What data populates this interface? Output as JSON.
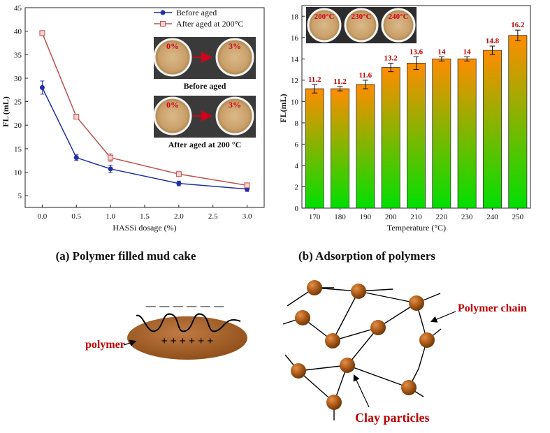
{
  "chart_data": [
    {
      "type": "line",
      "caption": "(a) Polymer filled mud cake",
      "xlabel": "HASSi dosage (%)",
      "ylabel": "FL (mL)",
      "x": [
        0.0,
        0.5,
        1.0,
        2.0,
        3.0
      ],
      "xticks": [
        "0.0",
        "0.5",
        "1.0",
        "1.5",
        "2.0",
        "2.5",
        "3.0"
      ],
      "xlim": [
        -0.25,
        3.25
      ],
      "yticks": [
        "5",
        "10",
        "15",
        "20",
        "25",
        "30",
        "35",
        "40",
        "45"
      ],
      "ylim": [
        2.5,
        45
      ],
      "series": [
        {
          "name": "Before aged",
          "values": [
            28.0,
            13.1,
            10.7,
            7.6,
            6.4
          ],
          "errors": [
            1.4,
            0.6,
            0.8,
            0.5,
            0.5
          ],
          "color": "#1f2fa8"
        },
        {
          "name": "After aged at 200°C",
          "values": [
            39.6,
            21.8,
            13.1,
            9.6,
            7.2
          ],
          "errors": [
            0.5,
            0.5,
            0.8,
            0.4,
            0.4
          ],
          "color": "#c0504d"
        }
      ],
      "legend_position": "top-right",
      "inset_photos": {
        "row1_label": "Before aged",
        "row1_left": "0%",
        "row1_right": "3%",
        "row2_label": "After aged at 200 °C",
        "row2_left": "0%",
        "row2_right": "3%"
      }
    },
    {
      "type": "bar",
      "caption": "(b) Adsorption  of polymers",
      "xlabel": "Temperature (°C)",
      "ylabel": "FL(mL)",
      "categories": [
        "170",
        "180",
        "190",
        "200",
        "210",
        "220",
        "230",
        "240",
        "250"
      ],
      "values": [
        11.2,
        11.2,
        11.6,
        13.2,
        13.6,
        14.0,
        14.0,
        14.8,
        16.2
      ],
      "data_labels": [
        "11.2",
        "11.2",
        "11.6",
        "13.2",
        "13.6",
        "14",
        "14",
        "14.8",
        "16.2"
      ],
      "errors": [
        0.4,
        0.2,
        0.4,
        0.4,
        0.6,
        0.2,
        0.2,
        0.4,
        0.5
      ],
      "yticks": [
        "0",
        "2",
        "4",
        "6",
        "8",
        "10",
        "12",
        "14",
        "16",
        "18"
      ],
      "ylim": [
        0,
        19
      ],
      "gradient": [
        "#ff8c00",
        "#00e000"
      ],
      "inset_photos": [
        "200°C",
        "230°C",
        "240°C"
      ]
    }
  ],
  "diagrams": {
    "mud_cake": {
      "label": "polymer",
      "charges": "+ + + + + +",
      "surface": "— — — — — —"
    },
    "network": {
      "chain_label": "Polymer chain",
      "particle_label": "Clay particles"
    }
  }
}
